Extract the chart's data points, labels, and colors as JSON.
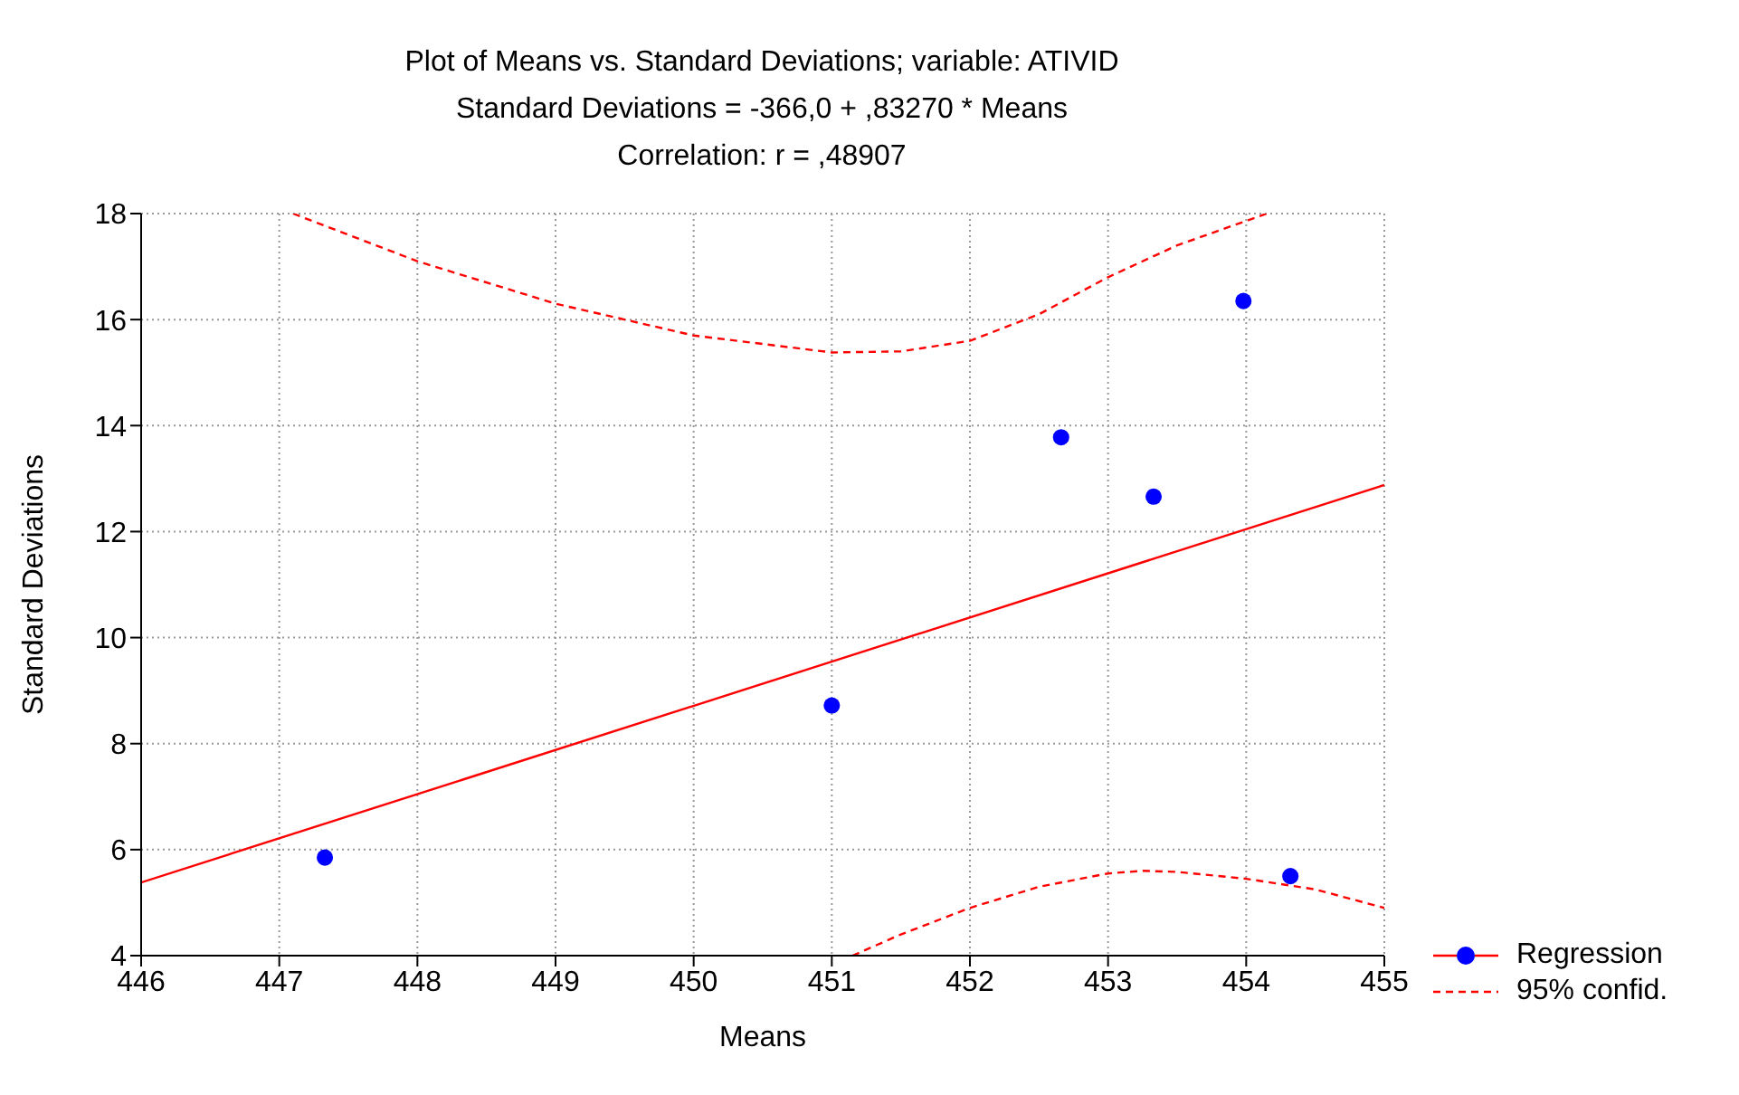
{
  "chart_data": {
    "type": "scatter",
    "title": "Plot of Means vs. Standard Deviations; variable: ATIVID",
    "subtitle": "Standard Deviations = -366,0 + ,83270 * Means",
    "annotations": [
      "Correlation: r = ,48907"
    ],
    "xlabel": "Means",
    "ylabel": "Standard Deviations",
    "xlim": [
      446,
      455
    ],
    "xticks": [
      446,
      447,
      448,
      449,
      450,
      451,
      452,
      453,
      454,
      455
    ],
    "ylim": [
      4,
      18
    ],
    "yticks": [
      4,
      6,
      8,
      10,
      12,
      14,
      16,
      18
    ],
    "grid": true,
    "legend": "bottom right",
    "series": [
      {
        "color": "#0000ff",
        "marker": "circle",
        "x": [
          447.33,
          451.0,
          452.66,
          453.33,
          453.98,
          454.32
        ],
        "values": [
          5.85,
          8.72,
          13.78,
          12.66,
          16.35,
          5.5
        ]
      },
      {
        "type": "line",
        "name": "Regression",
        "color": "#ff0000",
        "line_style": "solid",
        "x": [
          446,
          455
        ],
        "values": [
          5.38,
          12.88
        ]
      },
      {
        "type": "line",
        "name": "95% confid.",
        "color": "#ff0000",
        "line_style": "dashed",
        "x": [
          447.1,
          448,
          449,
          450,
          451,
          451.5,
          452,
          452.5,
          453,
          453.5,
          454.15
        ],
        "values": [
          18,
          17.1,
          16.3,
          15.7,
          15.38,
          15.4,
          15.6,
          16.1,
          16.8,
          17.4,
          18
        ]
      },
      {
        "type": "line",
        "color": "#ff0000",
        "line_style": "dashed",
        "x": [
          451.15,
          451.5,
          452,
          452.5,
          453,
          453.25,
          453.5,
          454,
          454.5,
          455
        ],
        "values": [
          4,
          4.4,
          4.9,
          5.3,
          5.55,
          5.6,
          5.58,
          5.45,
          5.25,
          4.9
        ]
      }
    ]
  }
}
